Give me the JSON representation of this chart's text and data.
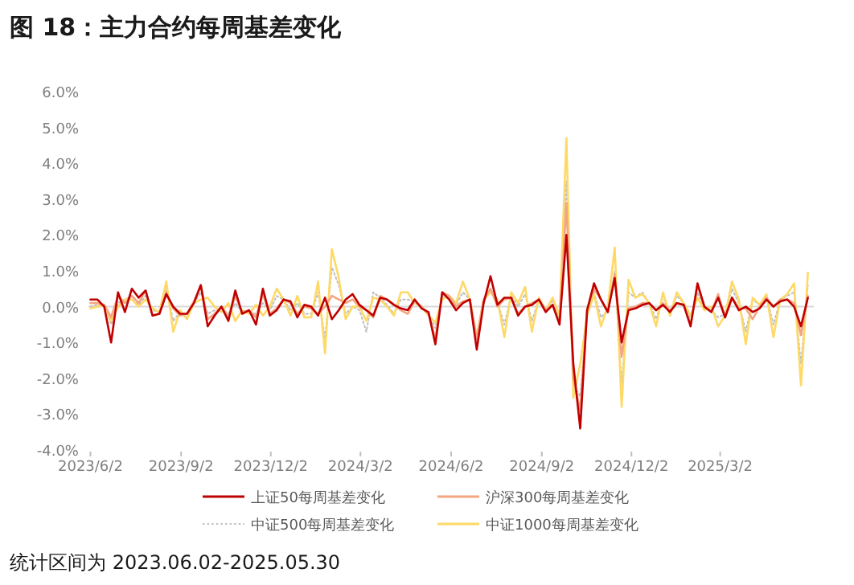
{
  "chart_data": {
    "type": "line",
    "title": "图 18：主力合约每周基差变化",
    "annotations": [
      "统计区间为 2023.06.02-2025.05.30"
    ],
    "x": [
      "2023-06-02",
      "2023-06-09",
      "2023-06-16",
      "2023-06-23",
      "2023-06-30",
      "2023-07-07",
      "2023-07-14",
      "2023-07-21",
      "2023-07-28",
      "2023-08-04",
      "2023-08-11",
      "2023-08-18",
      "2023-08-25",
      "2023-09-01",
      "2023-09-08",
      "2023-09-15",
      "2023-09-22",
      "2023-09-29",
      "2023-10-06",
      "2023-10-13",
      "2023-10-20",
      "2023-10-27",
      "2023-11-03",
      "2023-11-10",
      "2023-11-17",
      "2023-11-24",
      "2023-12-01",
      "2023-12-08",
      "2023-12-15",
      "2023-12-22",
      "2023-12-29",
      "2024-01-05",
      "2024-01-12",
      "2024-01-19",
      "2024-01-26",
      "2024-02-02",
      "2024-02-09",
      "2024-02-16",
      "2024-02-23",
      "2024-03-01",
      "2024-03-08",
      "2024-03-15",
      "2024-03-22",
      "2024-03-29",
      "2024-04-05",
      "2024-04-12",
      "2024-04-19",
      "2024-04-26",
      "2024-05-03",
      "2024-05-10",
      "2024-05-17",
      "2024-05-24",
      "2024-05-31",
      "2024-06-07",
      "2024-06-14",
      "2024-06-21",
      "2024-06-28",
      "2024-07-05",
      "2024-07-12",
      "2024-07-19",
      "2024-07-26",
      "2024-08-02",
      "2024-08-09",
      "2024-08-16",
      "2024-08-23",
      "2024-08-30",
      "2024-09-06",
      "2024-09-13",
      "2024-09-20",
      "2024-09-27",
      "2024-10-04",
      "2024-10-11",
      "2024-10-18",
      "2024-10-25",
      "2024-11-01",
      "2024-11-08",
      "2024-11-15",
      "2024-11-22",
      "2024-11-29",
      "2024-12-06",
      "2024-12-13",
      "2024-12-20",
      "2024-12-27",
      "2025-01-03",
      "2025-01-10",
      "2025-01-17",
      "2025-01-24",
      "2025-01-31",
      "2025-02-07",
      "2025-02-14",
      "2025-02-21",
      "2025-02-28",
      "2025-03-07",
      "2025-03-14",
      "2025-03-21",
      "2025-03-28",
      "2025-04-04",
      "2025-04-11",
      "2025-04-18",
      "2025-04-25",
      "2025-05-02",
      "2025-05-09",
      "2025-05-16",
      "2025-05-23",
      "2025-05-30"
    ],
    "series": [
      {
        "name": "上证50每周基差变化",
        "color": "#c00000",
        "line_style": "solid",
        "values": [
          0.2,
          0.2,
          0.0,
          -1.0,
          0.4,
          -0.15,
          0.5,
          0.25,
          0.45,
          -0.25,
          -0.2,
          0.35,
          0.0,
          -0.2,
          -0.2,
          0.1,
          0.6,
          -0.55,
          -0.25,
          0.0,
          -0.4,
          0.45,
          -0.2,
          -0.1,
          -0.5,
          0.5,
          -0.25,
          -0.1,
          0.2,
          0.15,
          -0.3,
          0.05,
          0.0,
          -0.25,
          0.25,
          -0.35,
          -0.1,
          0.2,
          0.35,
          0.05,
          -0.1,
          -0.25,
          0.25,
          0.2,
          0.05,
          -0.05,
          -0.1,
          0.2,
          -0.05,
          -0.15,
          -1.05,
          0.4,
          0.2,
          -0.1,
          0.1,
          0.2,
          -1.2,
          0.1,
          0.85,
          0.05,
          0.25,
          0.25,
          -0.25,
          0.0,
          0.05,
          0.2,
          -0.15,
          0.05,
          -0.5,
          2.0,
          -1.6,
          -3.4,
          -0.1,
          0.65,
          0.2,
          -0.15,
          0.8,
          -1.0,
          -0.1,
          -0.05,
          0.05,
          0.1,
          -0.1,
          0.05,
          -0.15,
          0.1,
          0.05,
          -0.55,
          0.65,
          0.0,
          -0.15,
          0.25,
          -0.3,
          0.25,
          -0.1,
          0.0,
          -0.15,
          -0.05,
          0.2,
          0.0,
          0.15,
          0.2,
          0.0,
          -0.55,
          0.25
        ]
      },
      {
        "name": "沪深300每周基差变化",
        "color": "#f4a582",
        "line_style": "solid",
        "values": [
          0.1,
          0.1,
          0.05,
          -0.3,
          0.3,
          0.1,
          0.3,
          0.1,
          0.45,
          -0.25,
          -0.2,
          0.4,
          -0.05,
          -0.25,
          -0.2,
          0.15,
          0.6,
          -0.35,
          -0.2,
          0.0,
          -0.3,
          0.3,
          -0.15,
          -0.1,
          -0.3,
          0.35,
          -0.2,
          -0.05,
          0.2,
          0.1,
          -0.2,
          0.0,
          -0.05,
          -0.2,
          0.0,
          0.3,
          0.2,
          0.1,
          0.2,
          0.0,
          -0.1,
          -0.3,
          0.3,
          0.2,
          0.05,
          -0.1,
          -0.2,
          0.15,
          0.0,
          -0.2,
          -0.9,
          0.4,
          0.3,
          0.0,
          0.15,
          0.2,
          -0.9,
          0.2,
          0.5,
          0.0,
          0.2,
          0.25,
          -0.2,
          0.0,
          0.1,
          0.2,
          -0.1,
          0.05,
          -0.45,
          2.9,
          -2.0,
          -2.9,
          -0.05,
          0.5,
          0.2,
          -0.15,
          0.9,
          -1.4,
          -0.05,
          0.0,
          0.1,
          0.1,
          -0.1,
          0.1,
          -0.1,
          0.1,
          0.05,
          -0.5,
          0.6,
          0.0,
          -0.15,
          0.35,
          -0.3,
          0.25,
          -0.05,
          -0.05,
          -0.35,
          0.0,
          0.25,
          0.0,
          0.2,
          0.2,
          0.1,
          -0.8,
          0.3
        ]
      },
      {
        "name": "中证500每周基差变化",
        "color": "#bfbfbf",
        "line_style": "dotted",
        "values": [
          0.0,
          0.05,
          0.05,
          -0.5,
          0.1,
          0.2,
          0.3,
          0.05,
          0.3,
          -0.1,
          -0.15,
          0.55,
          -0.4,
          -0.15,
          -0.3,
          0.1,
          0.4,
          -0.2,
          -0.1,
          -0.05,
          -0.2,
          0.1,
          -0.15,
          -0.15,
          -0.2,
          0.1,
          -0.1,
          0.3,
          0.2,
          -0.1,
          0.1,
          -0.2,
          -0.2,
          0.4,
          -0.9,
          1.1,
          0.6,
          -0.2,
          0.0,
          -0.1,
          -0.7,
          0.4,
          0.25,
          0.05,
          -0.2,
          0.2,
          0.2,
          0.15,
          0.0,
          -0.2,
          -0.6,
          0.3,
          0.3,
          0.05,
          0.4,
          0.2,
          -0.9,
          0.15,
          0.5,
          0.15,
          -0.5,
          0.3,
          0.0,
          0.35,
          -0.4,
          0.2,
          -0.1,
          0.15,
          -0.35,
          3.5,
          -2.2,
          -2.5,
          -0.2,
          0.4,
          -0.3,
          -0.1,
          1.0,
          -2.2,
          0.4,
          0.25,
          0.4,
          0.1,
          -0.35,
          0.3,
          -0.2,
          0.3,
          0.1,
          -0.4,
          0.4,
          -0.05,
          -0.1,
          -0.3,
          -0.2,
          0.5,
          0.1,
          -0.7,
          0.2,
          0.05,
          0.3,
          -0.5,
          0.2,
          0.3,
          0.4,
          -1.6,
          0.6
        ]
      },
      {
        "name": "中证1000每周基差变化",
        "color": "#ffd966",
        "line_style": "solid",
        "values": [
          -0.05,
          0.0,
          0.05,
          -0.4,
          0.0,
          0.2,
          0.2,
          0.0,
          0.2,
          -0.05,
          -0.15,
          0.7,
          -0.7,
          -0.1,
          -0.35,
          0.1,
          0.2,
          0.25,
          0.0,
          -0.15,
          0.1,
          -0.4,
          -0.1,
          -0.2,
          0.05,
          -0.25,
          0.0,
          0.5,
          0.2,
          -0.25,
          0.3,
          -0.3,
          -0.3,
          0.7,
          -1.3,
          1.6,
          0.8,
          -0.35,
          0.0,
          0.0,
          -0.4,
          0.25,
          0.2,
          0.0,
          -0.25,
          0.4,
          0.4,
          0.1,
          0.0,
          -0.25,
          -0.45,
          0.2,
          0.3,
          0.1,
          0.7,
          0.2,
          -0.85,
          0.2,
          0.4,
          0.2,
          -0.85,
          0.4,
          0.1,
          0.55,
          -0.7,
          0.25,
          -0.1,
          0.25,
          -0.25,
          4.7,
          -2.55,
          -1.6,
          -0.25,
          0.35,
          -0.55,
          0.0,
          1.65,
          -2.8,
          0.75,
          0.25,
          0.35,
          0.1,
          -0.55,
          0.4,
          -0.25,
          0.4,
          0.1,
          -0.25,
          0.25,
          -0.1,
          0.0,
          -0.55,
          -0.25,
          0.7,
          0.2,
          -1.05,
          0.25,
          0.05,
          0.35,
          -0.85,
          0.2,
          0.35,
          0.65,
          -2.2,
          0.95
        ]
      }
    ],
    "xlim": [
      "2023-05-31",
      "2025-06-05"
    ],
    "xticks": [
      {
        "value": "2023-06-02",
        "label": "2023/6/2"
      },
      {
        "value": "2023-09-02",
        "label": "2023/9/2"
      },
      {
        "value": "2023-12-02",
        "label": "2023/12/2"
      },
      {
        "value": "2024-03-02",
        "label": "2024/3/2"
      },
      {
        "value": "2024-06-02",
        "label": "2024/6/2"
      },
      {
        "value": "2024-09-02",
        "label": "2024/9/2"
      },
      {
        "value": "2024-12-02",
        "label": "2024/12/2"
      },
      {
        "value": "2025-03-02",
        "label": "2025/3/2"
      }
    ],
    "ylim": [
      -4,
      6
    ],
    "yticks": [
      {
        "value": -4,
        "label": "-4.0%"
      },
      {
        "value": -3,
        "label": "-3.0%"
      },
      {
        "value": -2,
        "label": "-2.0%"
      },
      {
        "value": -1,
        "label": "-1.0%"
      },
      {
        "value": 0,
        "label": "0.0%"
      },
      {
        "value": 1,
        "label": "1.0%"
      },
      {
        "value": 2,
        "label": "2.0%"
      },
      {
        "value": 3,
        "label": "3.0%"
      },
      {
        "value": 4,
        "label": "4.0%"
      },
      {
        "value": 5,
        "label": "5.0%"
      },
      {
        "value": 6,
        "label": "6.0%"
      }
    ],
    "ref_lines": [
      {
        "axis": "y",
        "value": 0,
        "color": "#d9d9d9"
      }
    ],
    "grid": false,
    "legend": "bottom"
  }
}
